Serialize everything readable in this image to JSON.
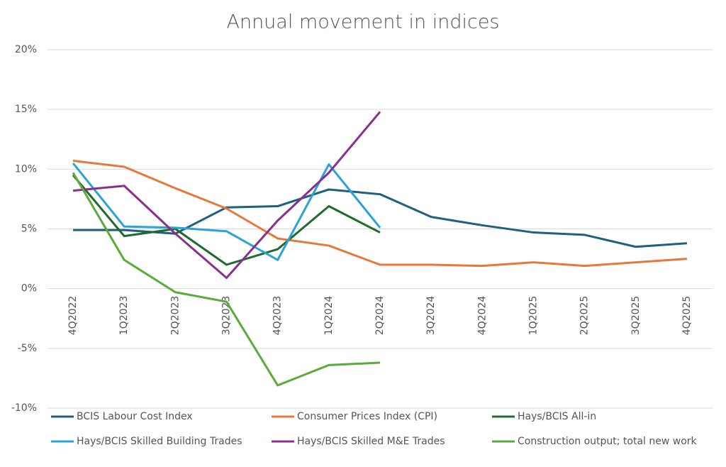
{
  "chart_data": {
    "type": "line",
    "title": "Annual movement in indices",
    "categories": [
      "4Q2022",
      "1Q2023",
      "2Q2023",
      "3Q2023",
      "4Q2023",
      "1Q2024",
      "2Q2024",
      "3Q2024",
      "4Q2024",
      "1Q2025",
      "2Q2025",
      "3Q2025",
      "4Q2025"
    ],
    "series": [
      {
        "name": "BCIS Labour Cost Index",
        "color": "#1f5f7f",
        "values": [
          4.9,
          4.9,
          4.6,
          6.8,
          6.9,
          8.3,
          7.9,
          6.0,
          5.3,
          4.7,
          4.5,
          3.5,
          3.8
        ]
      },
      {
        "name": "Consumer Prices Index (CPI)",
        "color": "#e8783a",
        "values": [
          10.7,
          10.2,
          8.4,
          6.7,
          4.2,
          3.6,
          2.0,
          2.0,
          1.9,
          2.2,
          1.9,
          2.2,
          2.5
        ]
      },
      {
        "name": "Hays/BCIS All-in",
        "color": "#1e6b2e",
        "values": [
          9.5,
          4.4,
          5.0,
          2.0,
          3.3,
          6.9,
          4.7,
          null,
          null,
          null,
          null,
          null,
          null
        ]
      },
      {
        "name": "Hays/BCIS Skilled Building Trades",
        "color": "#2aa3d6",
        "values": [
          10.5,
          5.2,
          5.1,
          4.8,
          2.4,
          10.4,
          5.1,
          null,
          null,
          null,
          null,
          null,
          null
        ]
      },
      {
        "name": "Hays/BCIS Skilled M&E Trades",
        "color": "#8b2f8f",
        "values": [
          8.2,
          8.6,
          4.6,
          0.9,
          5.7,
          9.7,
          14.8,
          null,
          null,
          null,
          null,
          null,
          null
        ]
      },
      {
        "name": "Construction output; total new work",
        "color": "#5aab3a",
        "values": [
          9.7,
          2.4,
          -0.3,
          -1.1,
          -8.1,
          -6.4,
          -6.2,
          null,
          null,
          null,
          null,
          null,
          null
        ]
      }
    ],
    "ylim": [
      -10,
      20
    ],
    "yticks": [
      {
        "value": -10,
        "label": "-10%"
      },
      {
        "value": -5,
        "label": "-5%"
      },
      {
        "value": 0,
        "label": "0%"
      },
      {
        "value": 5,
        "label": "5%"
      },
      {
        "value": 10,
        "label": "10%"
      },
      {
        "value": 15,
        "label": "15%"
      },
      {
        "value": 20,
        "label": "20%"
      }
    ],
    "grid": true,
    "legend": "bottom"
  }
}
